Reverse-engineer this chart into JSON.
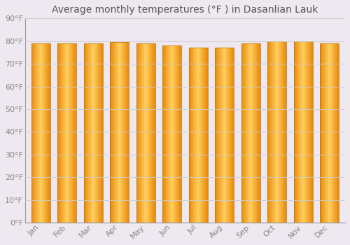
{
  "title": "Average monthly temperatures (°F ) in Dasanlian Lauk",
  "months": [
    "Jan",
    "Feb",
    "Mar",
    "Apr",
    "May",
    "Jun",
    "Jul",
    "Aug",
    "Sep",
    "Oct",
    "Nov",
    "Dec"
  ],
  "values": [
    79,
    79,
    79,
    79.5,
    79,
    78,
    77,
    77,
    79,
    80,
    80,
    79
  ],
  "bar_color_center": "#FFC04C",
  "bar_color_edge": "#E8890A",
  "ylim": [
    0,
    90
  ],
  "ytick_values": [
    0,
    10,
    20,
    30,
    40,
    50,
    60,
    70,
    80,
    90
  ],
  "background_color": "#EEE8F0",
  "plot_area_color": "#EEE8F0",
  "grid_color": "#CCCCCC",
  "title_fontsize": 10,
  "tick_fontsize": 8,
  "tick_font_color": "#888888",
  "title_color": "#555555"
}
